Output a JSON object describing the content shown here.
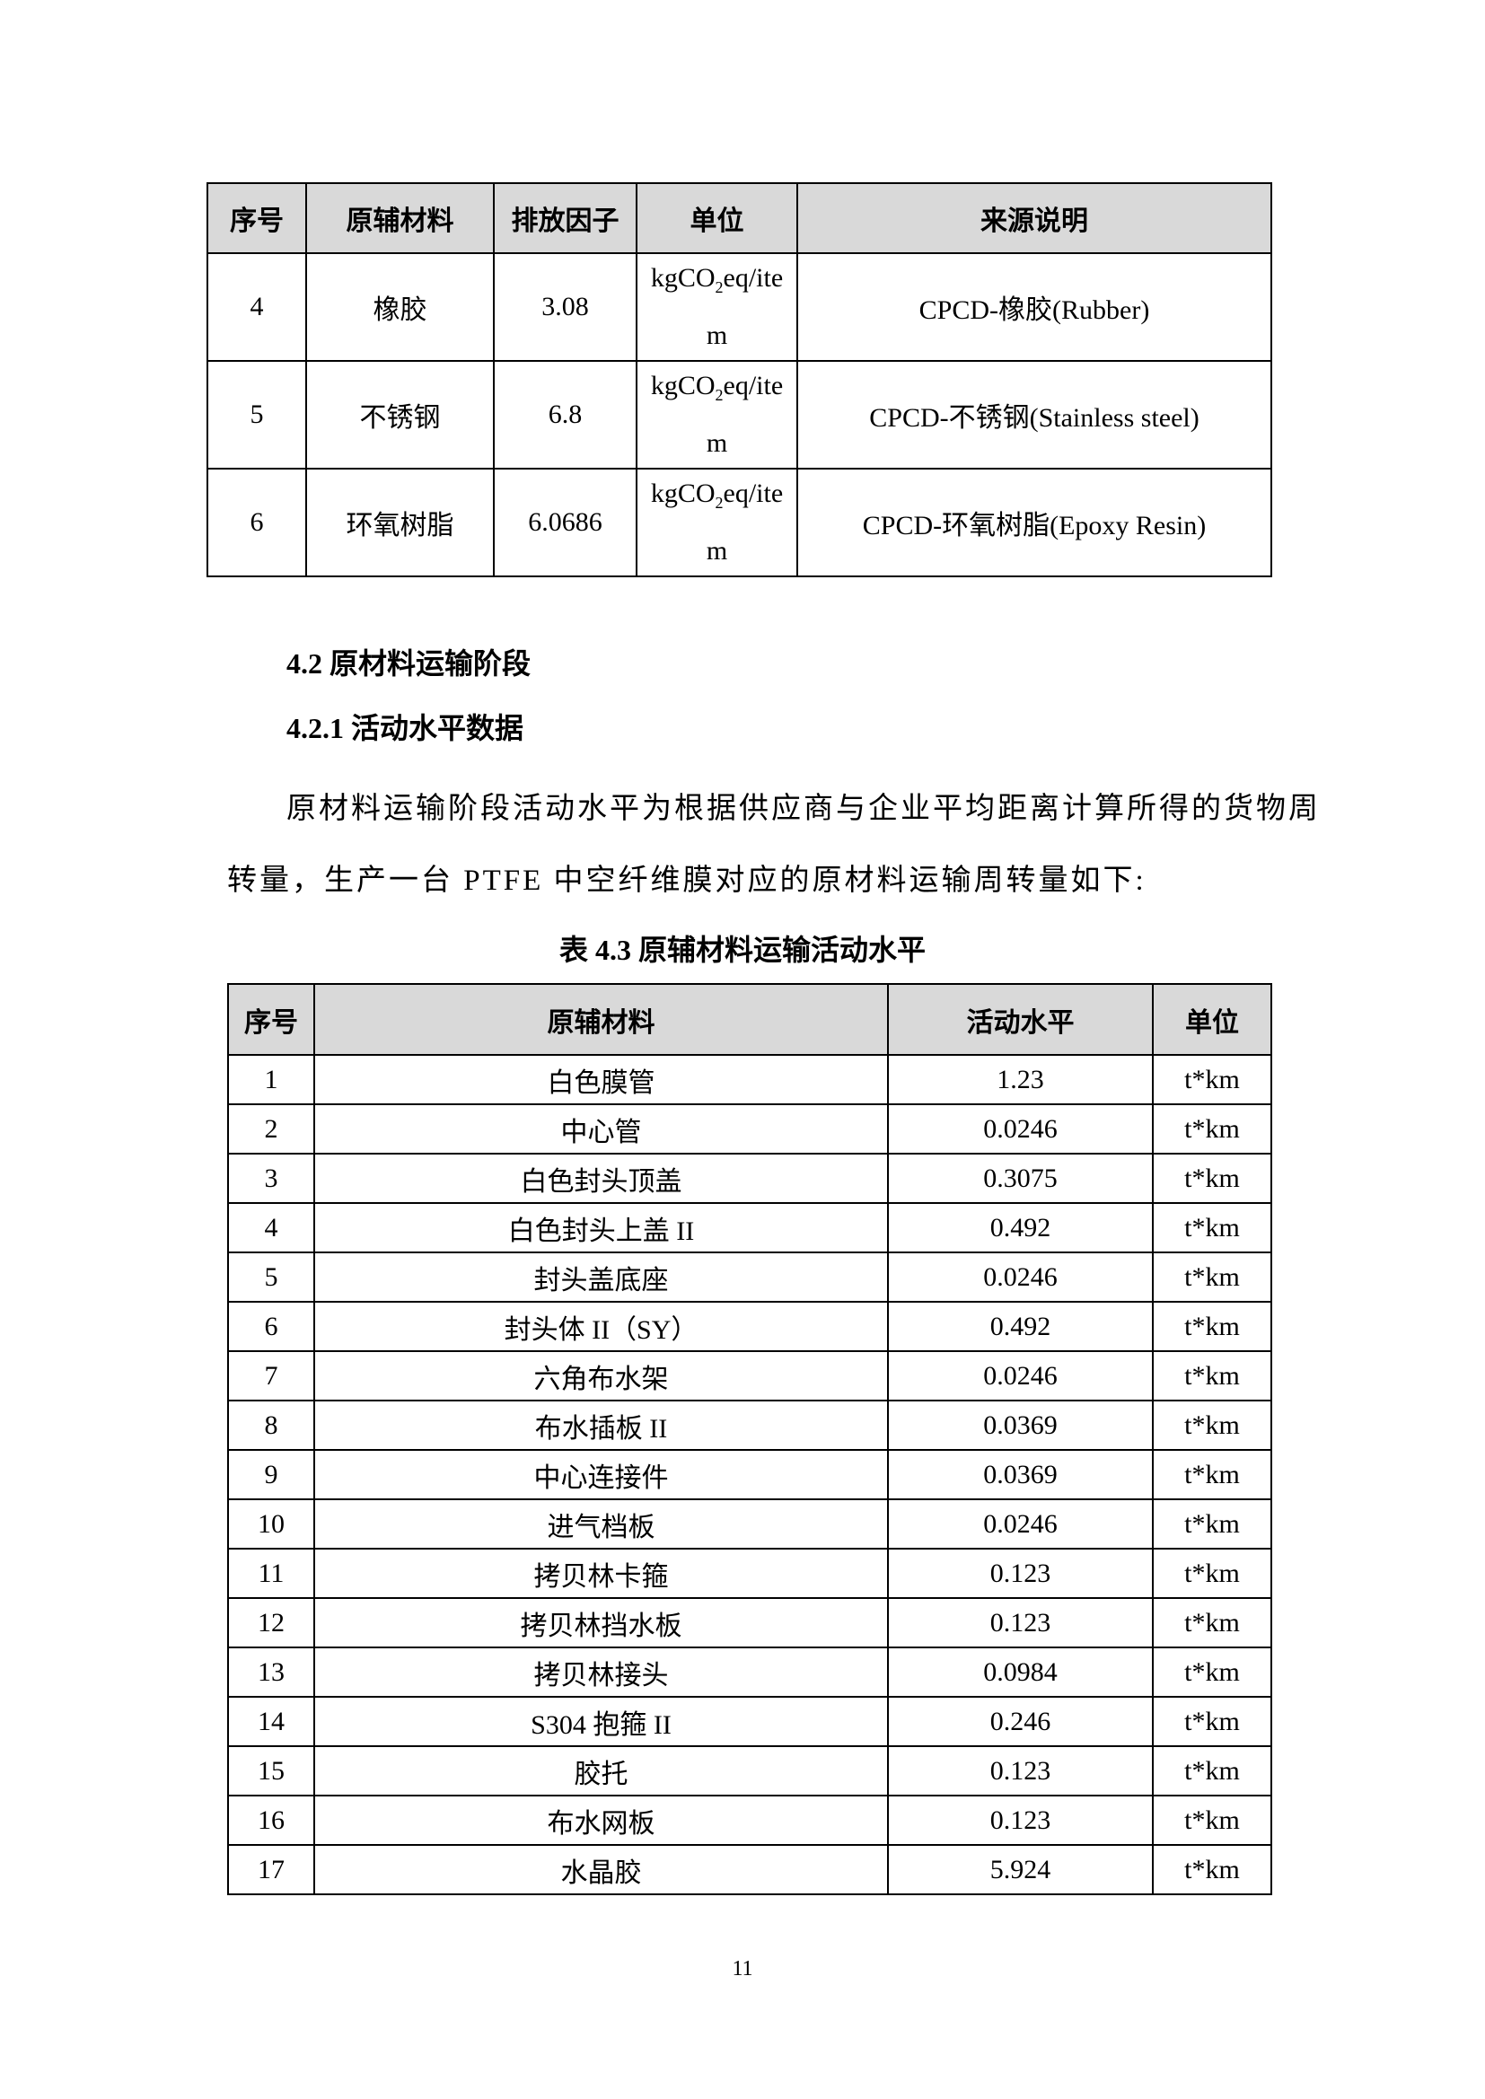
{
  "table_prev": {
    "headers": [
      "序号",
      "原辅材料",
      "排放因子",
      "单位",
      "来源说明"
    ],
    "rows": [
      {
        "no": "4",
        "material": "橡胶",
        "factor": "3.08",
        "unit_a": "kgCO",
        "unit_sub": "2",
        "unit_b": "eq/ite",
        "unit_c": "m",
        "source": "CPCD-橡胶(Rubber)"
      },
      {
        "no": "5",
        "material": "不锈钢",
        "factor": "6.8",
        "unit_a": "kgCO",
        "unit_sub": "2",
        "unit_b": "eq/ite",
        "unit_c": "m",
        "source": "CPCD-不锈钢(Stainless steel)"
      },
      {
        "no": "6",
        "material": "环氧树脂",
        "factor": "6.0686",
        "unit_a": "kgCO",
        "unit_sub": "2",
        "unit_b": "eq/ite",
        "unit_c": "m",
        "source": "CPCD-环氧树脂(Epoxy Resin)"
      }
    ]
  },
  "section": {
    "heading": "4.2  原材料运输阶段",
    "subheading": "4.2.1  活动水平数据",
    "paragraph_line1": "原材料运输阶段活动水平为根据供应商与企业平均距离计算所得的货物周",
    "paragraph_line2": "转量，生产一台 PTFE 中空纤维膜对应的原材料运输周转量如下:"
  },
  "table_4_3": {
    "caption": "表 4.3  原辅材料运输活动水平",
    "headers": [
      "序号",
      "原辅材料",
      "活动水平",
      "单位"
    ],
    "rows": [
      [
        "1",
        "白色膜管",
        "1.23",
        "t*km"
      ],
      [
        "2",
        "中心管",
        "0.0246",
        "t*km"
      ],
      [
        "3",
        "白色封头顶盖",
        "0.3075",
        "t*km"
      ],
      [
        "4",
        "白色封头上盖 II",
        "0.492",
        "t*km"
      ],
      [
        "5",
        "封头盖底座",
        "0.0246",
        "t*km"
      ],
      [
        "6",
        "封头体 II（SY）",
        "0.492",
        "t*km"
      ],
      [
        "7",
        "六角布水架",
        "0.0246",
        "t*km"
      ],
      [
        "8",
        "布水插板 II",
        "0.0369",
        "t*km"
      ],
      [
        "9",
        "中心连接件",
        "0.0369",
        "t*km"
      ],
      [
        "10",
        "进气档板",
        "0.0246",
        "t*km"
      ],
      [
        "11",
        "拷贝林卡箍",
        "0.123",
        "t*km"
      ],
      [
        "12",
        "拷贝林挡水板",
        "0.123",
        "t*km"
      ],
      [
        "13",
        "拷贝林接头",
        "0.0984",
        "t*km"
      ],
      [
        "14",
        "S304 抱箍 II",
        "0.246",
        "t*km"
      ],
      [
        "15",
        "胶托",
        "0.123",
        "t*km"
      ],
      [
        "16",
        "布水网板",
        "0.123",
        "t*km"
      ],
      [
        "17",
        "水晶胶",
        "5.924",
        "t*km"
      ]
    ]
  },
  "page_number": "11"
}
